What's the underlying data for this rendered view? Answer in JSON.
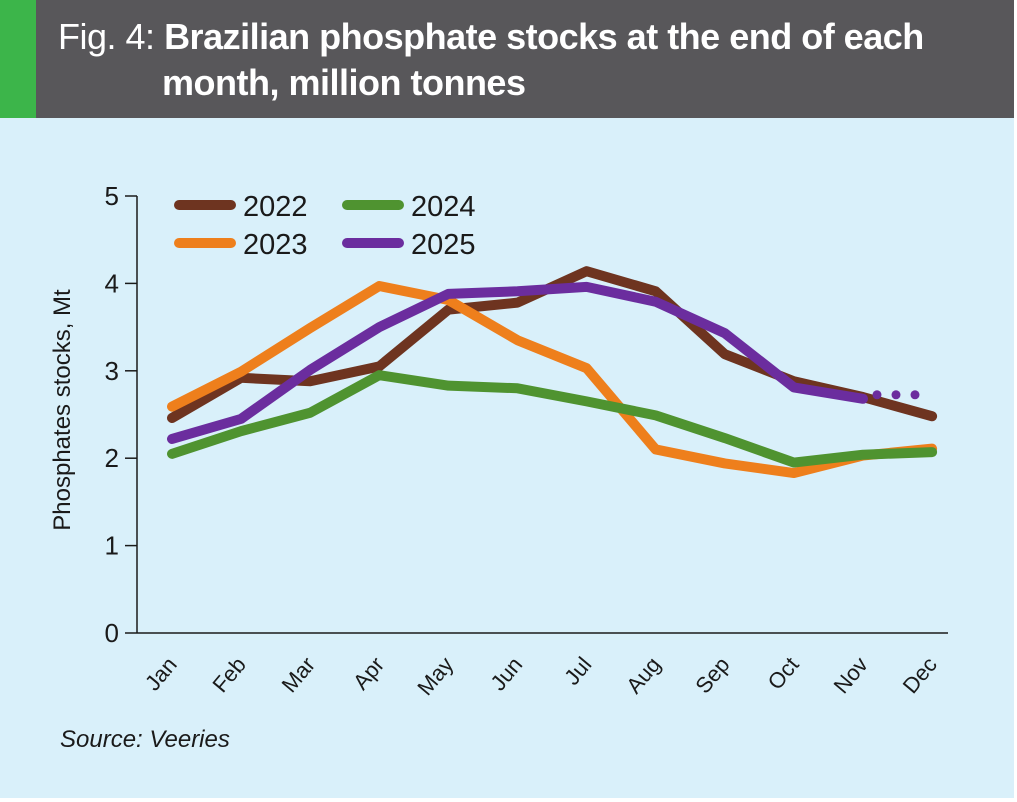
{
  "figure": {
    "prefix": "Fig. 4:",
    "title_line1": "Brazilian phosphate stocks at the end of each",
    "title_line2": "month, million tonnes",
    "source": "Source: Veeries",
    "colors": {
      "header_bg": "#58575a",
      "accent": "#3cb54a",
      "panel_bg": "#d9f0fa"
    }
  },
  "chart_data": {
    "type": "line",
    "title": "Brazilian phosphate stocks at the end of each month, million tonnes",
    "xlabel": "",
    "ylabel": "Phosphates stocks, Mt",
    "ylim": [
      0,
      5
    ],
    "yticks": [
      0,
      1,
      2,
      3,
      4,
      5
    ],
    "grid": false,
    "legend_position": "top-left",
    "categories": [
      "Jan",
      "Feb",
      "Mar",
      "Apr",
      "May",
      "Jun",
      "Jul",
      "Aug",
      "Sep",
      "Oct",
      "Nov",
      "Dec"
    ],
    "series": [
      {
        "name": "2022",
        "color": "#6e3420",
        "values": [
          2.46,
          2.92,
          2.88,
          3.05,
          3.7,
          3.78,
          4.14,
          3.91,
          3.19,
          2.88,
          2.7,
          2.48
        ]
      },
      {
        "name": "2023",
        "color": "#ee7f1c",
        "values": [
          2.59,
          2.99,
          3.49,
          3.97,
          3.81,
          3.35,
          3.03,
          2.1,
          1.94,
          1.83,
          2.03,
          2.11
        ]
      },
      {
        "name": "2024",
        "color": "#4f9330",
        "values": [
          2.05,
          2.31,
          2.52,
          2.95,
          2.83,
          2.8,
          2.65,
          2.49,
          2.23,
          1.95,
          2.04,
          2.07
        ]
      },
      {
        "name": "2025",
        "color": "#6b2d9e",
        "values": [
          2.22,
          2.45,
          3.01,
          3.5,
          3.88,
          3.91,
          3.96,
          3.79,
          3.43,
          2.81,
          2.68,
          null
        ],
        "continuation": "dotted"
      }
    ]
  }
}
